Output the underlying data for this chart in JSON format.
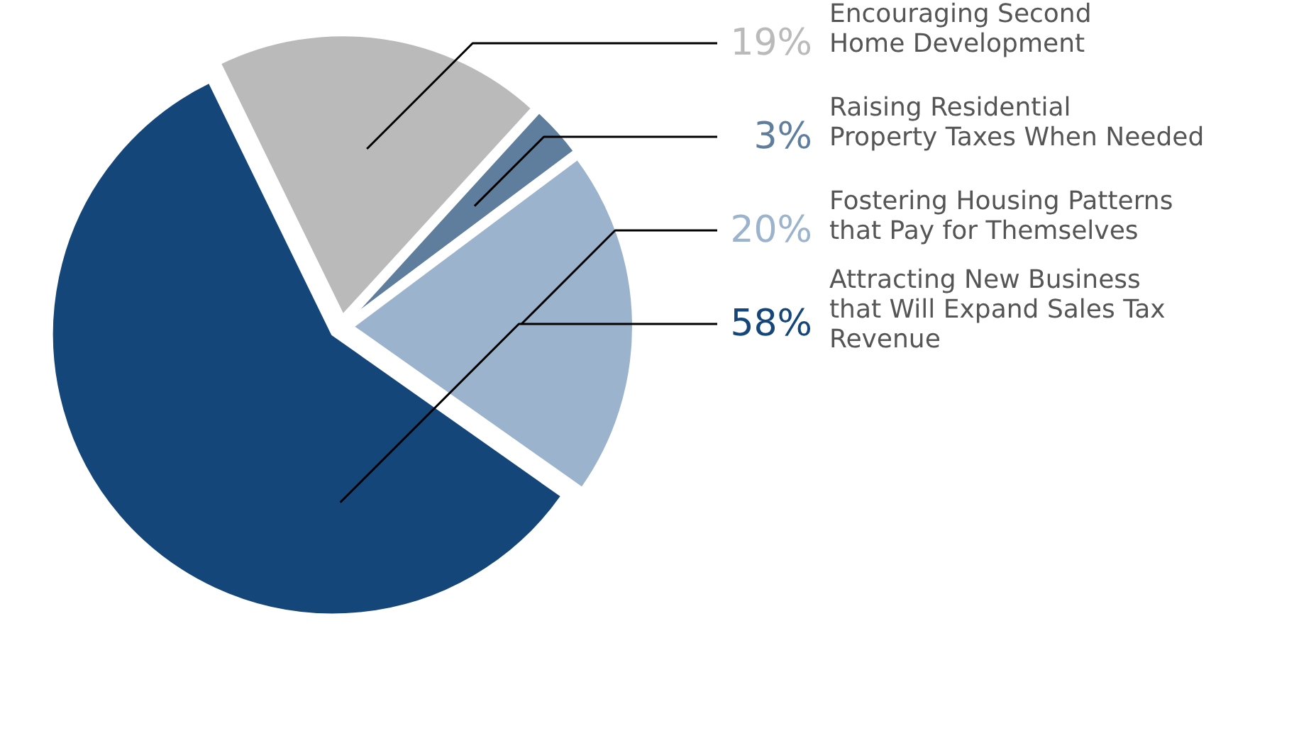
{
  "chart_data": {
    "type": "pie",
    "categories": [
      "Encouraging Second\nHome Development",
      "Raising Residential\nProperty Taxes When Needed",
      "Fostering Housing Patterns\nthat Pay for Themselves",
      "Attracting New Business\nthat Will Expand Sales Tax\nRevenue"
    ],
    "values": [
      19,
      3,
      20,
      58
    ],
    "colors": [
      "#bababa",
      "#5f7e9e",
      "#9bb3cc",
      "#15467a"
    ],
    "value_labels": [
      "19%",
      "3%",
      "20%",
      "58%"
    ]
  }
}
